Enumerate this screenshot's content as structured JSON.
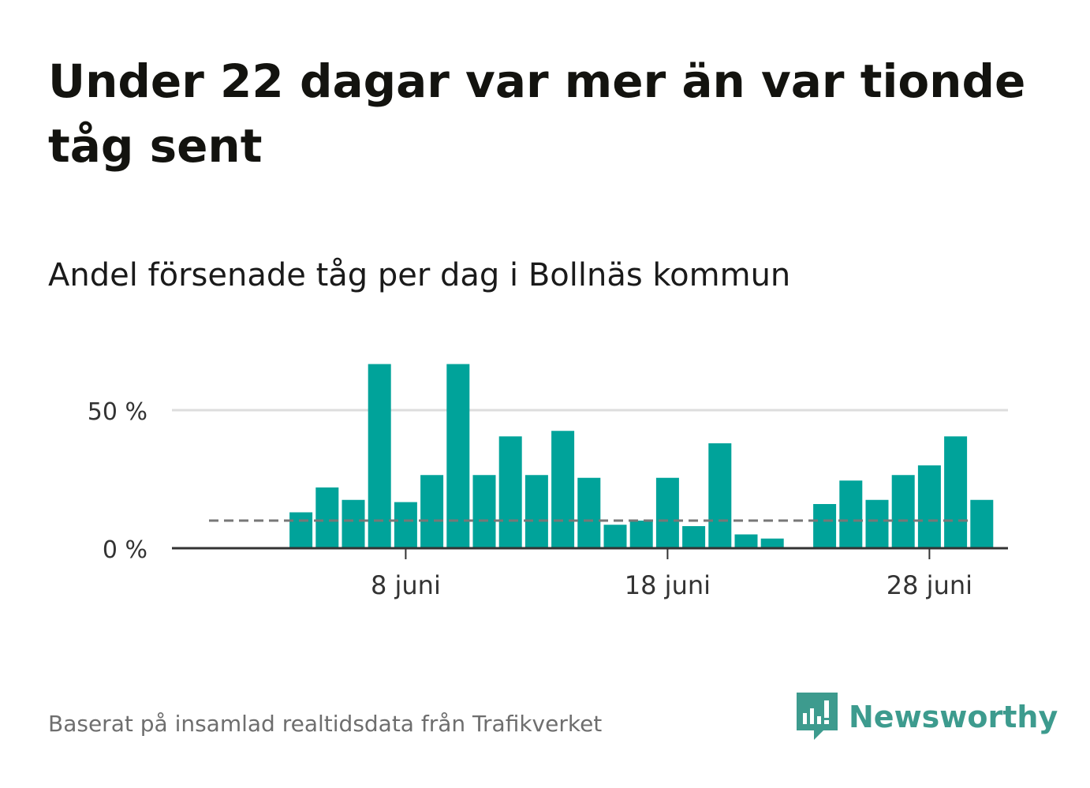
{
  "title": "Under 22 dagar var mer än var tionde tåg sent",
  "subtitle": "Andel försenade tåg per dag i Bollnäs kommun",
  "footer": "Baserat på insamlad realtidsdata från Trafikverket",
  "brand": {
    "name": "Newsworthy",
    "icon": "newsworthy-logo-icon",
    "color": "#3d9b8e"
  },
  "colors": {
    "bar": "#00a39a",
    "reference_line": "#777777",
    "grid": "#dddddd",
    "axis": "#333333"
  },
  "chart_data": {
    "type": "bar",
    "x": [
      "1 juni",
      "2 juni",
      "3 juni",
      "4 juni",
      "5 juni",
      "6 juni",
      "7 juni",
      "8 juni",
      "9 juni",
      "10 juni",
      "11 juni",
      "12 juni",
      "13 juni",
      "14 juni",
      "15 juni",
      "16 juni",
      "17 juni",
      "18 juni",
      "19 juni",
      "20 juni",
      "21 juni",
      "22 juni",
      "23 juni",
      "24 juni",
      "25 juni",
      "26 juni",
      "27 juni",
      "28 juni",
      "29 juni",
      "30 juni"
    ],
    "values": [
      null,
      null,
      null,
      13,
      22,
      17.5,
      66.7,
      16.7,
      26.5,
      66.7,
      26.5,
      40.5,
      26.5,
      42.5,
      25.5,
      8.5,
      10,
      25.5,
      8,
      38,
      5,
      3.5,
      null,
      16,
      24.5,
      17.5,
      26.5,
      30,
      40.5,
      17.5
    ],
    "reference_line": 10,
    "ylim": [
      0,
      70
    ],
    "yticks": [
      {
        "value": 0,
        "label": "0 %"
      },
      {
        "value": 50,
        "label": "50 %"
      }
    ],
    "xticks": [
      {
        "value": "8 juni",
        "label": "8 juni"
      },
      {
        "value": "18 juni",
        "label": "18 juni"
      },
      {
        "value": "28 juni",
        "label": "28 juni"
      }
    ],
    "grid": true,
    "xlabel": "",
    "ylabel": ""
  }
}
